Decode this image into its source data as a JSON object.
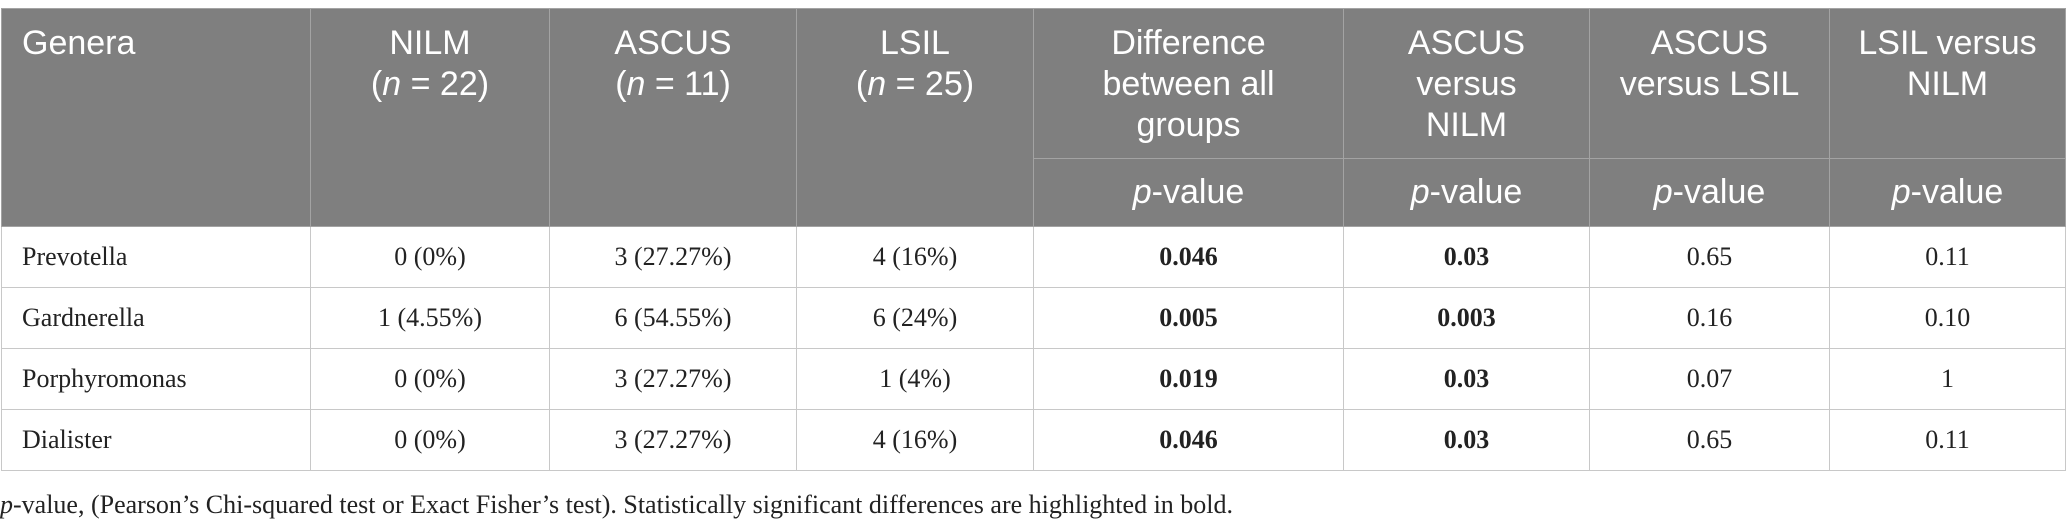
{
  "header": {
    "genera": "Genera",
    "nilm_label": "NILM",
    "nilm_n_prefix": "(",
    "nilm_n_var": "n",
    "nilm_n_rest": " = 22)",
    "ascus_label": "ASCUS",
    "ascus_n_prefix": "(",
    "ascus_n_var": "n",
    "ascus_n_rest": " = 11)",
    "lsil_label": "LSIL",
    "lsil_n_prefix": "(",
    "lsil_n_var": "n",
    "lsil_n_rest": " = 25)",
    "diff_all_1": "Difference",
    "diff_all_2": "between all",
    "diff_all_3": "groups",
    "ascus_vs_nilm_1": "ASCUS",
    "ascus_vs_nilm_2": "versus",
    "ascus_vs_nilm_3": "NILM",
    "ascus_vs_lsil_1": "ASCUS",
    "ascus_vs_lsil_2": "versus LSIL",
    "lsil_vs_nilm_1": "LSIL versus",
    "lsil_vs_nilm_2": "NILM",
    "pvalue_var": "p",
    "pvalue_rest": "-value"
  },
  "rows": [
    {
      "genus": "Prevotella",
      "nilm": "0 (0%)",
      "ascus": "3 (27.27%)",
      "lsil": "4 (16%)",
      "diff": "0.046",
      "ascus_nilm": "0.03",
      "ascus_lsil": "0.65",
      "lsil_nilm": "0.11"
    },
    {
      "genus": "Gardnerella",
      "nilm": "1 (4.55%)",
      "ascus": "6 (54.55%)",
      "lsil": "6 (24%)",
      "diff": "0.005",
      "ascus_nilm": "0.003",
      "ascus_lsil": "0.16",
      "lsil_nilm": "0.10"
    },
    {
      "genus": "Porphyromonas",
      "nilm": "0 (0%)",
      "ascus": "3 (27.27%)",
      "lsil": "1 (4%)",
      "diff": "0.019",
      "ascus_nilm": "0.03",
      "ascus_lsil": "0.07",
      "lsil_nilm": "1"
    },
    {
      "genus": "Dialister",
      "nilm": "0 (0%)",
      "ascus": "3 (27.27%)",
      "lsil": "4 (16%)",
      "diff": "0.046",
      "ascus_nilm": "0.03",
      "ascus_lsil": "0.65",
      "lsil_nilm": "0.11"
    }
  ],
  "footnote": {
    "var": "p",
    "rest": "-value, (Pearson’s Chi-squared test or Exact Fisher’s test). Statistically significant differences are highlighted in bold."
  },
  "colors": {
    "header_bg": "#7f7f7f",
    "header_text": "#ffffff",
    "border": "#c8c8c8"
  }
}
